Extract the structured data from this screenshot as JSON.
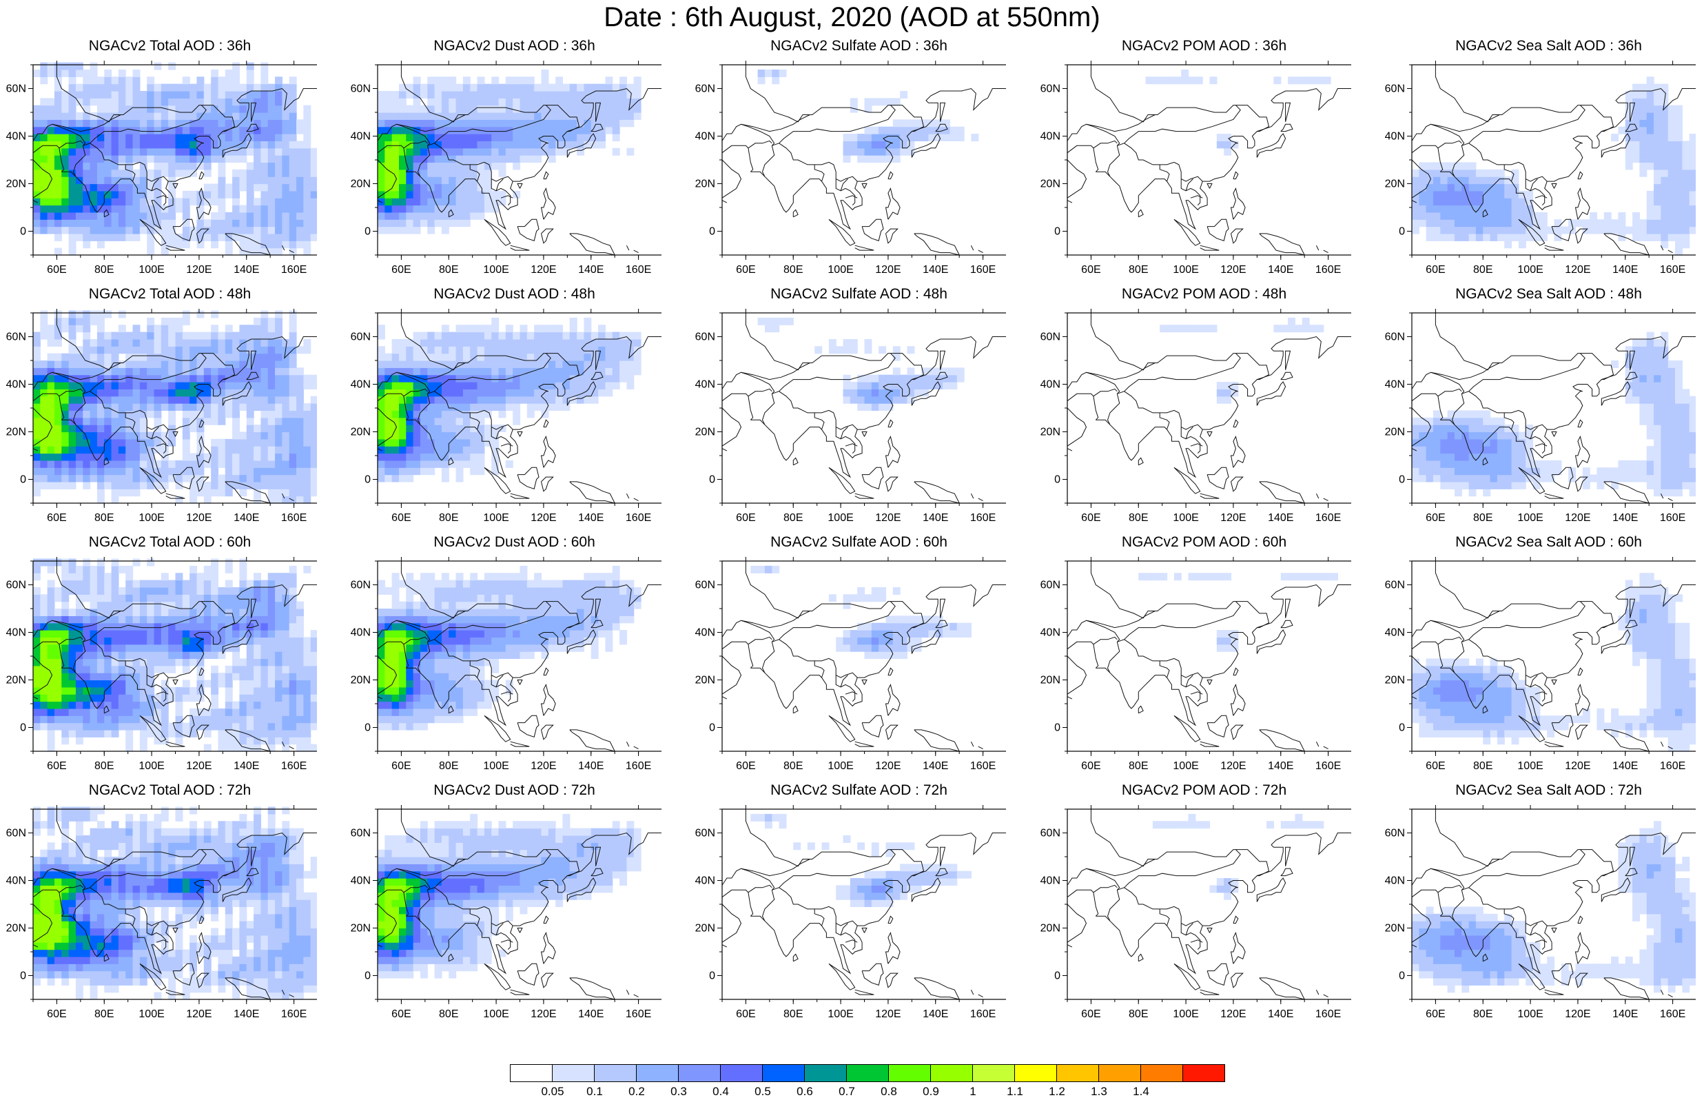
{
  "title": "Date : 6th August, 2020 (AOD at 550nm)",
  "x_ticks": [
    "60E",
    "80E",
    "100E",
    "120E",
    "140E",
    "160E"
  ],
  "y_ticks": [
    "60N",
    "40N",
    "20N",
    "0"
  ],
  "panels": [
    {
      "title": "NGACv2 Total AOD : 36h",
      "kind": "total",
      "row": 0,
      "col": 0
    },
    {
      "title": "NGACv2 Dust AOD : 36h",
      "kind": "dust",
      "row": 0,
      "col": 1
    },
    {
      "title": "NGACv2 Sulfate AOD : 36h",
      "kind": "sulfate",
      "row": 0,
      "col": 2
    },
    {
      "title": "NGACv2 POM AOD : 36h",
      "kind": "pom",
      "row": 0,
      "col": 3
    },
    {
      "title": "NGACv2 Sea Salt AOD : 36h",
      "kind": "seasalt",
      "row": 0,
      "col": 4
    },
    {
      "title": "NGACv2 Total AOD : 48h",
      "kind": "total",
      "row": 1,
      "col": 0
    },
    {
      "title": "NGACv2 Dust AOD : 48h",
      "kind": "dust",
      "row": 1,
      "col": 1
    },
    {
      "title": "NGACv2 Sulfate AOD : 48h",
      "kind": "sulfate",
      "row": 1,
      "col": 2
    },
    {
      "title": "NGACv2 POM AOD : 48h",
      "kind": "pom",
      "row": 1,
      "col": 3
    },
    {
      "title": "NGACv2 Sea Salt AOD : 48h",
      "kind": "seasalt",
      "row": 1,
      "col": 4
    },
    {
      "title": "NGACv2 Total AOD : 60h",
      "kind": "total",
      "row": 2,
      "col": 0
    },
    {
      "title": "NGACv2 Dust AOD : 60h",
      "kind": "dust",
      "row": 2,
      "col": 1
    },
    {
      "title": "NGACv2 Sulfate AOD : 60h",
      "kind": "sulfate",
      "row": 2,
      "col": 2
    },
    {
      "title": "NGACv2 POM AOD : 60h",
      "kind": "pom",
      "row": 2,
      "col": 3
    },
    {
      "title": "NGACv2 Sea Salt AOD : 60h",
      "kind": "seasalt",
      "row": 2,
      "col": 4
    },
    {
      "title": "NGACv2 Total AOD : 72h",
      "kind": "total",
      "row": 3,
      "col": 0
    },
    {
      "title": "NGACv2 Dust AOD : 72h",
      "kind": "dust",
      "row": 3,
      "col": 1
    },
    {
      "title": "NGACv2 Sulfate AOD : 72h",
      "kind": "sulfate",
      "row": 3,
      "col": 2
    },
    {
      "title": "NGACv2 POM AOD : 72h",
      "kind": "pom",
      "row": 3,
      "col": 3
    },
    {
      "title": "NGACv2 Sea Salt  AOD : 72h",
      "kind": "seasalt",
      "row": 3,
      "col": 4
    }
  ],
  "legend": {
    "colors": [
      "#ffffff",
      "#d6e2ff",
      "#b5c9ff",
      "#8eb2ff",
      "#7f96ff",
      "#6370ff",
      "#0063ff",
      "#009696",
      "#00c633",
      "#63ff00",
      "#96ff00",
      "#c6ff33",
      "#ffff00",
      "#ffc600",
      "#ffa000",
      "#ff7c00",
      "#ff1900"
    ],
    "labels": [
      "0.05",
      "0.1",
      "0.2",
      "0.3",
      "0.4",
      "0.5",
      "0.6",
      "0.7",
      "0.8",
      "0.9",
      "1",
      "1.1",
      "1.2",
      "1.3",
      "1.4"
    ]
  }
}
